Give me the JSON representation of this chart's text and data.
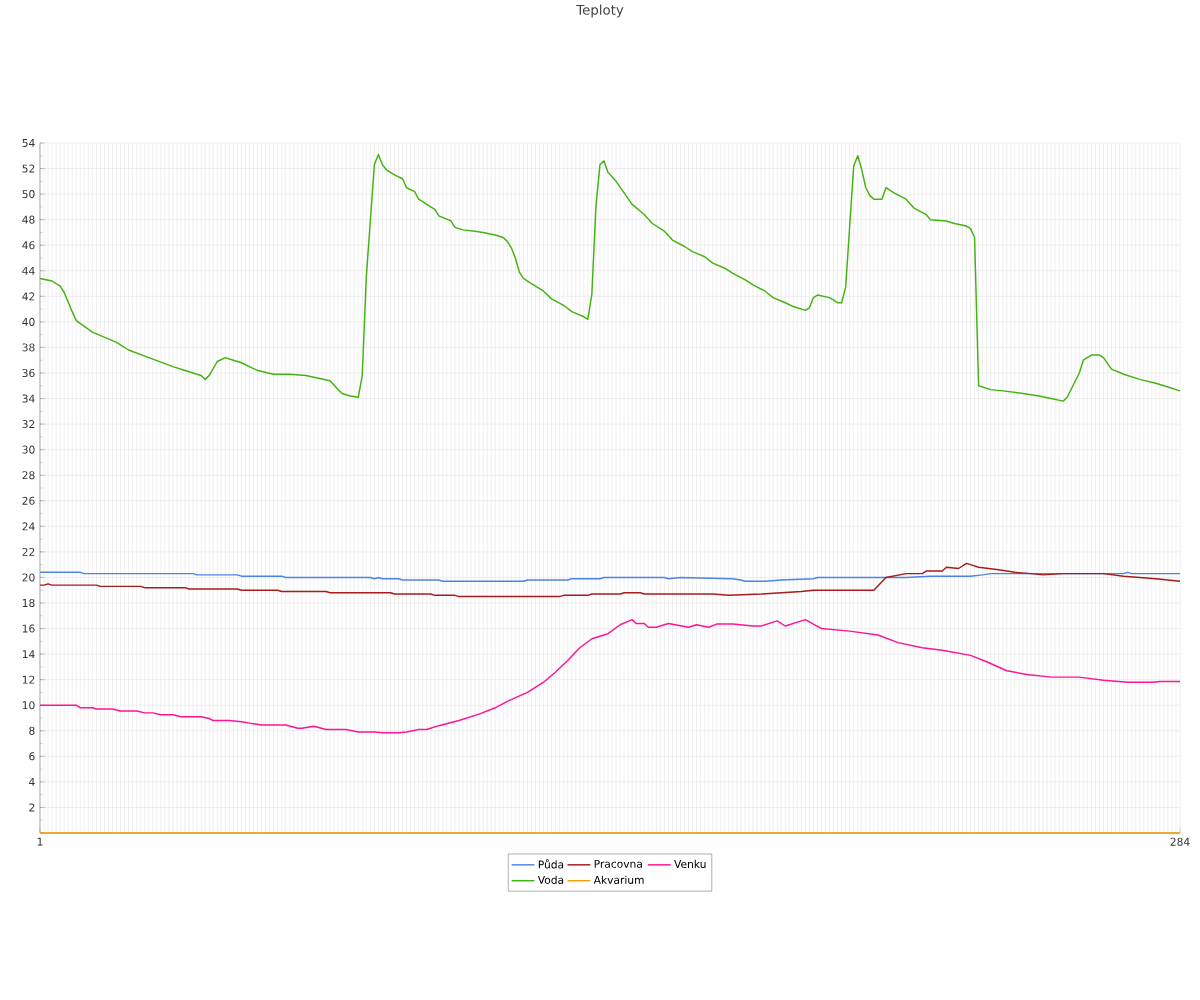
{
  "chart_data": {
    "type": "line",
    "title": "Teploty",
    "xlim": [
      1,
      284
    ],
    "xticks": [
      1,
      284
    ],
    "ylim": [
      0,
      54
    ],
    "yticks": [
      {
        "value": 0,
        "label": null
      },
      2,
      4,
      6,
      8,
      10,
      12,
      14,
      16,
      18,
      20,
      22,
      24,
      26,
      28,
      30,
      32,
      34,
      36,
      38,
      40,
      42,
      44,
      46,
      48,
      50,
      52,
      54
    ],
    "grid": true,
    "legend": "bottom",
    "marker": "none",
    "line_style": "solid",
    "series": [
      {
        "name": "Půda",
        "color": "#4d83e8",
        "x": [
          1,
          11,
          12,
          39,
          40,
          50,
          51,
          61,
          62,
          83,
          84,
          85,
          86,
          90,
          91,
          100,
          101,
          121,
          122,
          132,
          133,
          140,
          141,
          156,
          157,
          160,
          173,
          175,
          176,
          181,
          185,
          193,
          194,
          216,
          222,
          232,
          235,
          237,
          270,
          271,
          272,
          284
        ],
        "values": [
          20.4,
          20.4,
          20.3,
          20.3,
          20.2,
          20.2,
          20.1,
          20.1,
          20.0,
          20.0,
          19.9,
          20.0,
          19.9,
          19.9,
          19.8,
          19.8,
          19.7,
          19.7,
          19.8,
          19.8,
          19.9,
          19.9,
          20.0,
          20.0,
          19.9,
          20.0,
          19.9,
          19.8,
          19.7,
          19.7,
          19.8,
          19.9,
          20.0,
          20.0,
          20.1,
          20.1,
          20.2,
          20.3,
          20.3,
          20.4,
          20.3,
          20.3
        ]
      },
      {
        "name": "Voda",
        "color": "#44b311",
        "x": [
          1,
          4,
          6,
          7,
          9,
          10,
          14,
          20,
          23,
          28,
          34,
          37,
          41,
          42,
          43,
          45,
          47,
          49,
          51,
          55,
          59,
          63,
          67,
          70,
          73,
          75,
          76,
          78,
          80,
          81,
          82,
          84,
          85,
          86,
          87,
          89,
          91,
          92,
          94,
          95,
          97,
          99,
          100,
          103,
          104,
          106,
          109,
          111,
          114,
          116,
          117,
          118,
          119,
          120,
          121,
          123,
          126,
          128,
          131,
          133,
          136,
          137,
          138,
          139,
          140,
          141,
          142,
          144,
          146,
          148,
          151,
          153,
          156,
          158,
          161,
          163,
          166,
          168,
          171,
          173,
          176,
          178,
          181,
          183,
          186,
          188,
          191,
          192,
          193,
          194,
          197,
          199,
          200,
          201,
          202,
          203,
          204,
          205,
          206,
          207,
          208,
          210,
          211,
          213,
          216,
          218,
          221,
          222,
          226,
          228,
          231,
          232,
          233,
          234,
          237,
          240,
          245,
          249,
          252,
          255,
          256,
          259,
          260,
          262,
          264,
          265,
          267,
          270,
          274,
          278,
          281,
          284
        ],
        "values": [
          43.4,
          43.2,
          42.8,
          42.3,
          40.8,
          40.1,
          39.2,
          38.4,
          37.8,
          37.2,
          36.5,
          36.2,
          35.8,
          35.5,
          35.8,
          36.9,
          37.2,
          37.0,
          36.8,
          36.2,
          35.9,
          35.9,
          35.8,
          35.6,
          35.4,
          34.7,
          34.4,
          34.2,
          34.1,
          35.8,
          43.5,
          52.3,
          53.1,
          52.3,
          51.9,
          51.5,
          51.2,
          50.5,
          50.2,
          49.6,
          49.2,
          48.8,
          48.3,
          47.9,
          47.4,
          47.2,
          47.1,
          47.0,
          46.8,
          46.6,
          46.3,
          45.8,
          45.0,
          43.9,
          43.4,
          43.0,
          42.4,
          41.8,
          41.3,
          40.8,
          40.4,
          40.2,
          42.2,
          49.0,
          52.3,
          52.6,
          51.7,
          51.0,
          50.1,
          49.2,
          48.4,
          47.7,
          47.1,
          46.4,
          45.9,
          45.5,
          45.1,
          44.6,
          44.2,
          43.8,
          43.3,
          42.9,
          42.4,
          41.9,
          41.5,
          41.2,
          40.9,
          41.1,
          41.9,
          42.1,
          41.9,
          41.5,
          41.5,
          42.7,
          47.5,
          52.2,
          53.0,
          51.9,
          50.5,
          49.9,
          49.6,
          49.6,
          50.5,
          50.1,
          49.6,
          48.9,
          48.4,
          48.0,
          47.9,
          47.7,
          47.5,
          47.3,
          46.6,
          35.0,
          34.7,
          34.6,
          34.4,
          34.2,
          34.0,
          33.8,
          34.1,
          36.0,
          37.0,
          37.4,
          37.4,
          37.2,
          36.3,
          35.9,
          35.5,
          35.2,
          34.9,
          34.6
        ]
      },
      {
        "name": "Pracovna",
        "color": "#a61c1c",
        "x": [
          1,
          2,
          3,
          4,
          15,
          16,
          26,
          27,
          37,
          38,
          50,
          51,
          60,
          61,
          72,
          73,
          88,
          89,
          98,
          99,
          104,
          105,
          130,
          131,
          137,
          138,
          145,
          146,
          150,
          151,
          168,
          172,
          180,
          185,
          190,
          193,
          208,
          211,
          216,
          220,
          221,
          225,
          226,
          229,
          231,
          232,
          234,
          239,
          243,
          247,
          250,
          255,
          265,
          270,
          274,
          278,
          284
        ],
        "values": [
          19.4,
          19.4,
          19.5,
          19.4,
          19.4,
          19.3,
          19.3,
          19.2,
          19.2,
          19.1,
          19.1,
          19.0,
          19.0,
          18.9,
          18.9,
          18.8,
          18.8,
          18.7,
          18.7,
          18.6,
          18.6,
          18.5,
          18.5,
          18.6,
          18.6,
          18.7,
          18.7,
          18.8,
          18.8,
          18.7,
          18.7,
          18.6,
          18.7,
          18.8,
          18.9,
          19.0,
          19.0,
          20.0,
          20.3,
          20.3,
          20.5,
          20.5,
          20.8,
          20.7,
          21.1,
          21.0,
          20.8,
          20.6,
          20.4,
          20.3,
          20.2,
          20.3,
          20.3,
          20.1,
          20.0,
          19.9,
          19.7
        ]
      },
      {
        "name": "Akvarium",
        "color": "#f5a000",
        "x": [
          1,
          284
        ],
        "values": [
          0,
          0
        ]
      },
      {
        "name": "Venku",
        "color": "#ff1493",
        "x": [
          1,
          10,
          11,
          14,
          15,
          19,
          21,
          25,
          27,
          29,
          31,
          34,
          36,
          41,
          43,
          44,
          48,
          51,
          53,
          56,
          62,
          65,
          66,
          69,
          72,
          77,
          80,
          84,
          86,
          90,
          92,
          95,
          97,
          100,
          105,
          110,
          114,
          117,
          122,
          126,
          129,
          132,
          135,
          138,
          141,
          142,
          145,
          148,
          149,
          151,
          152,
          154,
          157,
          162,
          164,
          167,
          169,
          173,
          178,
          180,
          184,
          186,
          191,
          195,
          202,
          209,
          214,
          220,
          225,
          232,
          236,
          241,
          246,
          252,
          259,
          265,
          271,
          277,
          279,
          284
        ],
        "values": [
          10.0,
          10.0,
          9.8,
          9.8,
          9.7,
          9.7,
          9.55,
          9.55,
          9.4,
          9.4,
          9.25,
          9.25,
          9.1,
          9.1,
          8.96,
          8.8,
          8.8,
          8.7,
          8.6,
          8.45,
          8.45,
          8.2,
          8.2,
          8.35,
          8.1,
          8.1,
          7.9,
          7.9,
          7.85,
          7.85,
          7.9,
          8.1,
          8.1,
          8.4,
          8.8,
          9.3,
          9.8,
          10.3,
          11.0,
          11.8,
          12.6,
          13.5,
          14.5,
          15.2,
          15.5,
          15.6,
          16.3,
          16.7,
          16.4,
          16.4,
          16.1,
          16.1,
          16.4,
          16.1,
          16.3,
          16.1,
          16.35,
          16.35,
          16.2,
          16.2,
          16.6,
          16.2,
          16.7,
          16.0,
          15.8,
          15.5,
          14.9,
          14.5,
          14.3,
          13.9,
          13.4,
          12.7,
          12.4,
          12.2,
          12.2,
          11.95,
          11.8,
          11.8,
          11.85,
          11.85
        ]
      }
    ]
  }
}
